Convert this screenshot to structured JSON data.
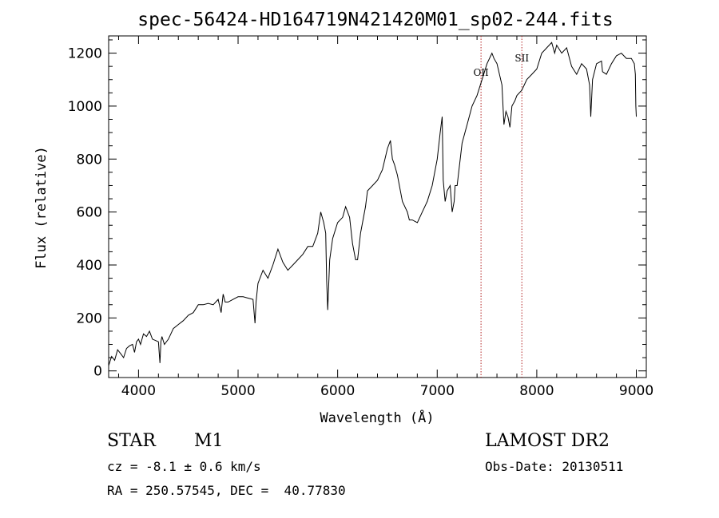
{
  "chart_data": {
    "type": "line",
    "title": "spec-56424-HD164719N421420M01_sp02-244.fits",
    "xlabel": "Wavelength (Å)",
    "ylabel": "Flux (relative)",
    "xlim": [
      3700,
      9100
    ],
    "ylim": [
      -25,
      1265
    ],
    "xticks": [
      "4000",
      "5000",
      "6000",
      "7000",
      "8000",
      "9000"
    ],
    "yticks": [
      "0",
      "200",
      "400",
      "600",
      "800",
      "1000",
      "1200"
    ],
    "grid": false,
    "series": [
      {
        "x": [
          3700,
          3730,
          3760,
          3790,
          3820,
          3850,
          3880,
          3910,
          3940,
          3960,
          3980,
          4000,
          4020,
          4050,
          4080,
          4110,
          4140,
          4170,
          4200,
          4215,
          4225,
          4235,
          4260,
          4300,
          4350,
          4400,
          4450,
          4500,
          4550,
          4600,
          4650,
          4700,
          4750,
          4800,
          4830,
          4850,
          4870,
          4900,
          4950,
          5000,
          5050,
          5100,
          5150,
          5170,
          5180,
          5200,
          5250,
          5300,
          5350,
          5400,
          5450,
          5500,
          5550,
          5600,
          5650,
          5700,
          5750,
          5800,
          5830,
          5860,
          5880,
          5890,
          5900,
          5920,
          5950,
          6000,
          6050,
          6080,
          6100,
          6120,
          6150,
          6180,
          6200,
          6230,
          6250,
          6280,
          6300,
          6350,
          6400,
          6450,
          6500,
          6530,
          6550,
          6570,
          6600,
          6650,
          6700,
          6720,
          6750,
          6800,
          6850,
          6900,
          6950,
          7000,
          7030,
          7050,
          7060,
          7080,
          7100,
          7130,
          7150,
          7170,
          7180,
          7200,
          7250,
          7300,
          7350,
          7400,
          7450,
          7500,
          7550,
          7570,
          7600,
          7650,
          7670,
          7690,
          7710,
          7730,
          7750,
          7780,
          7800,
          7850,
          7900,
          7950,
          8000,
          8050,
          8100,
          8150,
          8180,
          8200,
          8250,
          8300,
          8350,
          8400,
          8450,
          8500,
          8530,
          8542,
          8560,
          8600,
          8650,
          8660,
          8700,
          8750,
          8800,
          8850,
          8900,
          8950,
          8980,
          8990,
          8995,
          9000
        ],
        "y": [
          20,
          55,
          40,
          80,
          65,
          50,
          85,
          95,
          100,
          70,
          110,
          120,
          100,
          140,
          130,
          150,
          120,
          115,
          110,
          30,
          110,
          130,
          100,
          120,
          160,
          175,
          190,
          210,
          220,
          250,
          250,
          255,
          250,
          270,
          220,
          290,
          260,
          260,
          270,
          280,
          280,
          275,
          270,
          180,
          260,
          330,
          380,
          350,
          400,
          460,
          410,
          380,
          400,
          420,
          440,
          470,
          470,
          520,
          600,
          560,
          520,
          340,
          230,
          420,
          500,
          560,
          580,
          620,
          600,
          580,
          480,
          420,
          420,
          520,
          560,
          620,
          680,
          700,
          720,
          760,
          840,
          870,
          800,
          780,
          740,
          640,
          600,
          570,
          570,
          560,
          600,
          640,
          700,
          800,
          900,
          960,
          720,
          640,
          680,
          700,
          600,
          640,
          700,
          700,
          860,
          930,
          1000,
          1040,
          1100,
          1160,
          1200,
          1180,
          1160,
          1080,
          930,
          980,
          960,
          920,
          1000,
          1020,
          1040,
          1060,
          1100,
          1120,
          1140,
          1200,
          1220,
          1240,
          1200,
          1230,
          1200,
          1220,
          1150,
          1120,
          1160,
          1140,
          1080,
          960,
          1100,
          1160,
          1170,
          1130,
          1120,
          1160,
          1190,
          1200,
          1180,
          1180,
          1160,
          1120,
          1000,
          960
        ]
      }
    ],
    "annotations": [
      {
        "label": "OII",
        "x": 7440
      },
      {
        "label": "SII",
        "x": 7850
      }
    ]
  },
  "info": {
    "object_type": "STAR",
    "subclass": "M1",
    "survey": "LAMOST DR2",
    "cz": "cz = -8.1 ± 0.6 km/s",
    "obs_date": "Obs-Date: 20130511",
    "coords": "RA = 250.57545, DEC =  40.77830"
  },
  "colors": {
    "spectrum": "#000000",
    "marker_lines": "#b22222"
  }
}
